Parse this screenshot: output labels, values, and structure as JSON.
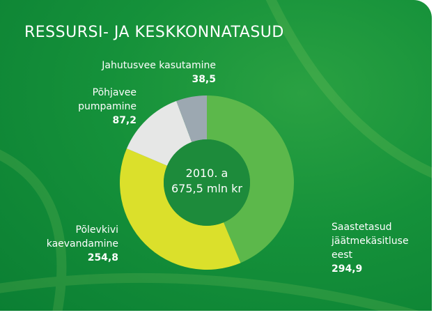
{
  "chart_data": {
    "type": "donut",
    "title": "RESSURSI- JA KESKKONNATASUD",
    "center_label": [
      "2010. a",
      "675,5 mln kr"
    ],
    "categories": [
      "Saastetasud jäätmekäsitluse eest",
      "Põlevkivi kaevandamine",
      "Põhjavee pumpamine",
      "Jahutusvee kasutamine"
    ],
    "values": [
      294.9,
      254.8,
      87.2,
      38.5
    ],
    "value_labels": [
      "294,9",
      "254,8",
      "87,2",
      "38,5"
    ],
    "colors": [
      "#5cb84b",
      "#dbe02b",
      "#e6e7e6",
      "#9ca8b1"
    ]
  }
}
